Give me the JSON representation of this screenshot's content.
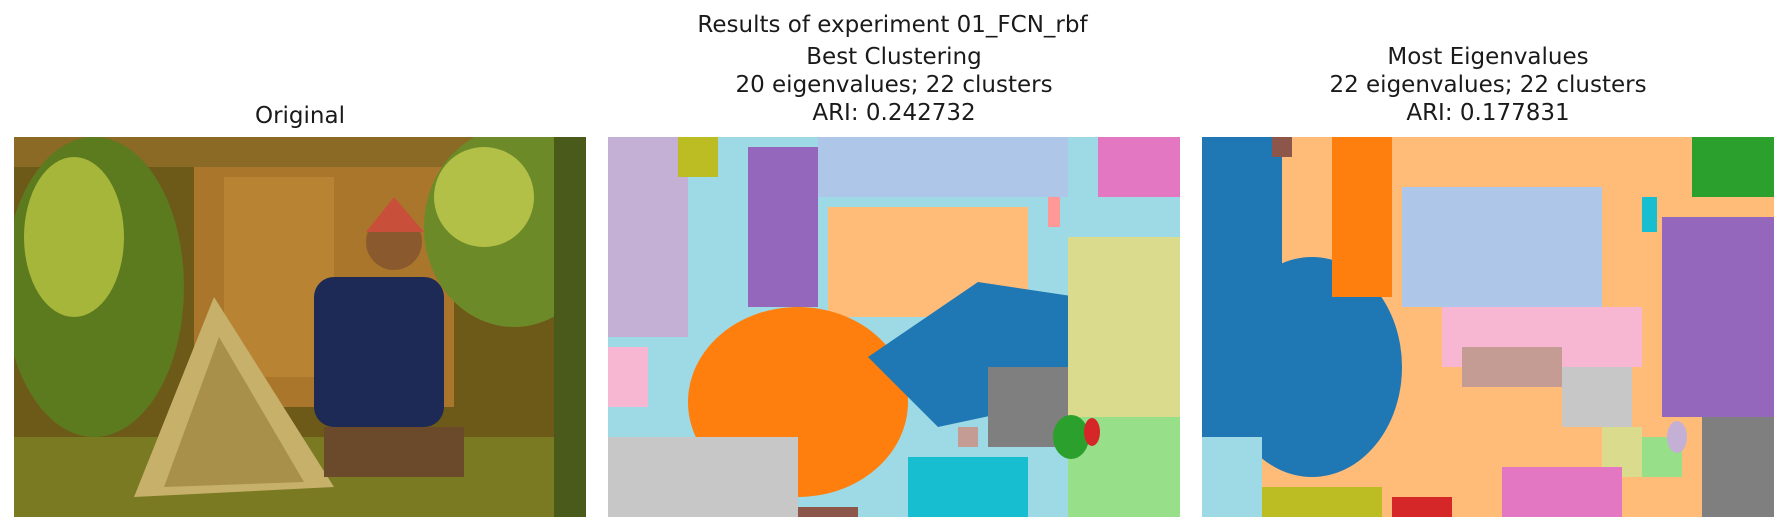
{
  "suptitle": "Results of experiment 01_FCN_rbf",
  "panels": [
    {
      "title_lines": [
        "Original"
      ]
    },
    {
      "title_lines": [
        "Best Clustering",
        "20 eigenvalues; 22 clusters",
        "ARI: 0.242732"
      ]
    },
    {
      "title_lines": [
        "Most Eigenvalues",
        "22 eigenvalues; 22 clusters",
        "ARI: 0.177831"
      ]
    }
  ],
  "colors": {
    "tab_blue": "#1f77b4",
    "tab_orange": "#ff7f0e",
    "tab_green": "#2ca02c",
    "tab_red": "#d62728",
    "tab_purple": "#9467bd",
    "tab_brown": "#8c564b",
    "tab_pink": "#e377c2",
    "tab_gray": "#7f7f7f",
    "tab_olive": "#bcbd22",
    "tab_cyan": "#17becf",
    "light_blue": "#aec7e8",
    "light_orange": "#ffbb78",
    "light_green": "#98df8a",
    "light_red": "#ff9896",
    "light_purple": "#c5b0d5",
    "light_brown": "#c49c94",
    "light_pink": "#f7b6d2",
    "light_gray": "#c7c7c7",
    "light_olive": "#dbdb8d",
    "light_cyan": "#9edae5"
  }
}
